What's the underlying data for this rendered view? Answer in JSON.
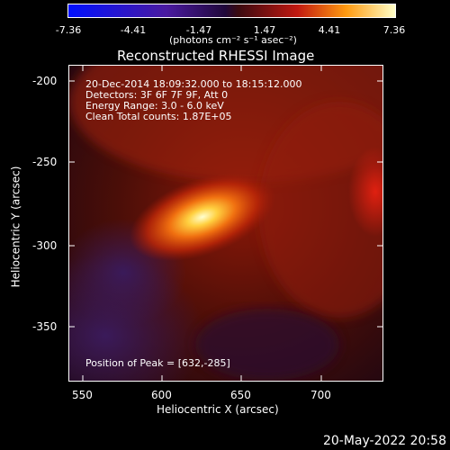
{
  "colorbar": {
    "ticks": [
      "-7.36",
      "-4.41",
      "-1.47",
      "1.47",
      "4.41",
      "7.36"
    ],
    "unit": "(photons cm⁻² s⁻¹ asec⁻²)"
  },
  "title": "Reconstructed RHESSI Image",
  "annotations": {
    "time": "20-Dec-2014 18:09:32.000 to 18:15:12.000",
    "detectors": "Detectors: 3F 6F 7F 9F, Att 0",
    "energy": "Energy Range: 3.0 - 6.0 keV",
    "clean": "Clean    Total counts: 1.87E+05",
    "peak": "Position of Peak = [632,-285]"
  },
  "axes": {
    "xlabel": "Heliocentric X (arcsec)",
    "ylabel": "Heliocentric Y (arcsec)",
    "xticks": [
      "550",
      "600",
      "650",
      "700"
    ],
    "yticks": [
      "-200",
      "-250",
      "-300",
      "-350"
    ]
  },
  "timestamp": "20-May-2022 20:58"
}
